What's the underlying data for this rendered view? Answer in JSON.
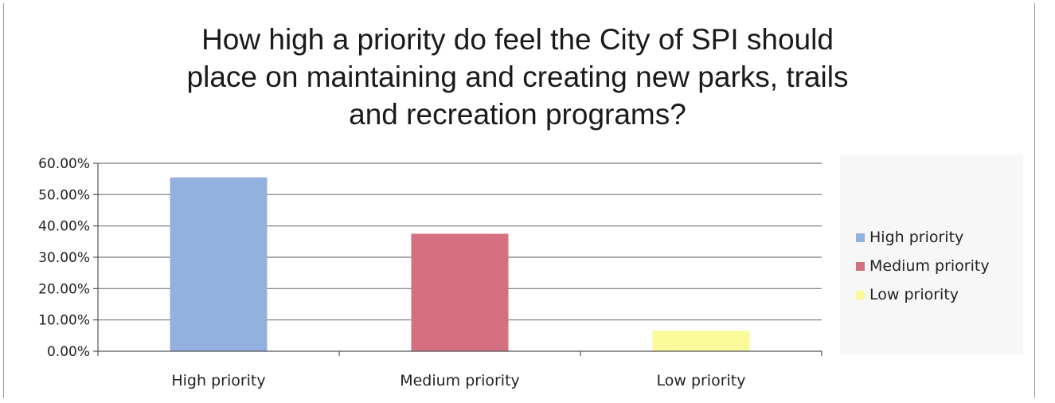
{
  "chart_data": {
    "type": "bar",
    "title_lines": [
      "How high a priority do feel the City of SPI should",
      "place on maintaining and creating new parks, trails",
      "and recreation programs?"
    ],
    "categories": [
      "High priority",
      "Medium priority",
      "Low priority"
    ],
    "values": [
      55.5,
      37.5,
      6.5
    ],
    "colors": [
      "#93b1de",
      "#d4707f",
      "#fafa9a"
    ],
    "ylim": [
      0,
      60
    ],
    "yticks": [
      "0.00%",
      "10.00%",
      "20.00%",
      "30.00%",
      "40.00%",
      "50.00%",
      "60.00%"
    ],
    "ytick_values": [
      0,
      10,
      20,
      30,
      40,
      50,
      60
    ],
    "grid": true,
    "legend": {
      "position": "right",
      "items": [
        "High priority",
        "Medium priority",
        "Low priority"
      ]
    }
  }
}
